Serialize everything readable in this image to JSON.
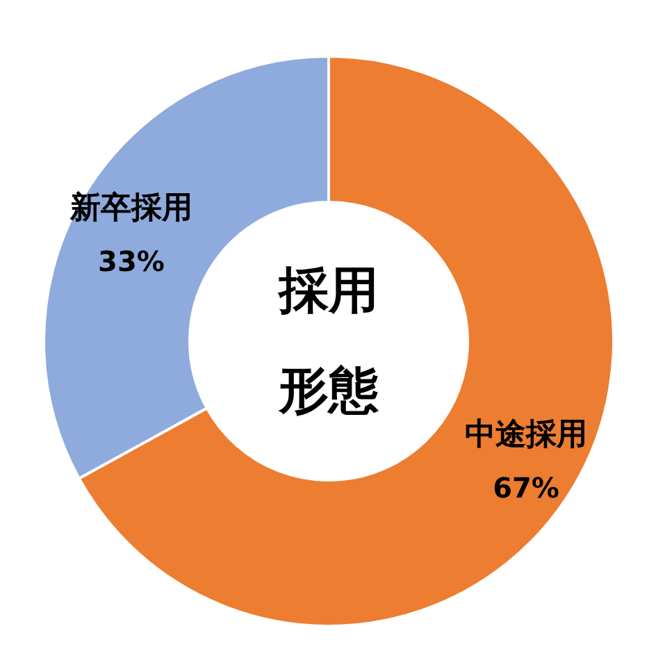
{
  "chart_data": {
    "type": "donut",
    "title": "採用形態",
    "categories": [
      "中途採用",
      "新卒採用"
    ],
    "values": [
      67,
      33
    ],
    "colors": [
      "#ed7d31",
      "#8faadc"
    ],
    "value_labels": [
      "67%",
      "33%"
    ]
  }
}
